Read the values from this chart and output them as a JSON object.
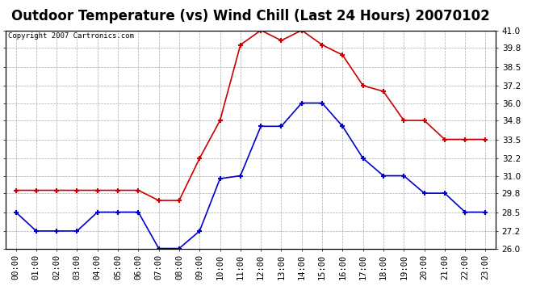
{
  "title": "Outdoor Temperature (vs) Wind Chill (Last 24 Hours) 20070102",
  "copyright_text": "Copyright 2007 Cartronics.com",
  "hours": [
    "00:00",
    "01:00",
    "02:00",
    "03:00",
    "04:00",
    "05:00",
    "06:00",
    "07:00",
    "08:00",
    "09:00",
    "10:00",
    "11:00",
    "12:00",
    "13:00",
    "14:00",
    "15:00",
    "16:00",
    "17:00",
    "18:00",
    "19:00",
    "20:00",
    "21:00",
    "22:00",
    "23:00"
  ],
  "temp": [
    30.0,
    30.0,
    30.0,
    30.0,
    30.0,
    30.0,
    30.0,
    29.3,
    29.3,
    32.2,
    34.8,
    40.0,
    41.0,
    40.3,
    41.0,
    40.0,
    39.3,
    37.2,
    36.8,
    34.8,
    34.8,
    33.5,
    33.5,
    33.5
  ],
  "windchill": [
    28.5,
    27.2,
    27.2,
    27.2,
    28.5,
    28.5,
    28.5,
    26.0,
    26.0,
    27.2,
    30.8,
    31.0,
    34.4,
    34.4,
    36.0,
    36.0,
    34.4,
    32.2,
    31.0,
    31.0,
    29.8,
    29.8,
    28.5,
    28.5
  ],
  "temp_color": "#cc0000",
  "windchill_color": "#0000cc",
  "bg_color": "#ffffff",
  "plot_bg_color": "#ffffff",
  "grid_color": "#aaaaaa",
  "ylim_min": 26.0,
  "ylim_max": 41.0,
  "yticks": [
    26.0,
    27.2,
    28.5,
    29.8,
    31.0,
    32.2,
    33.5,
    34.8,
    36.0,
    37.2,
    38.5,
    39.8,
    41.0
  ],
  "title_fontsize": 12,
  "copyright_fontsize": 6.5,
  "tick_fontsize": 7.5,
  "marker": "+",
  "linewidth": 1.2,
  "marker_size": 5,
  "marker_edge_width": 1.5
}
